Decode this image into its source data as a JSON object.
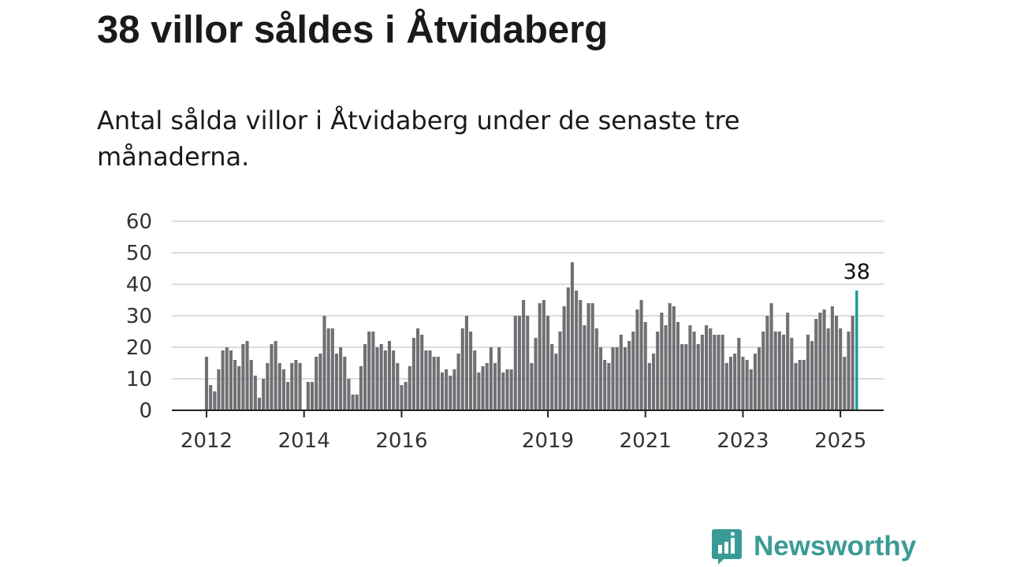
{
  "title": "38 villor såldes i Åtvidaberg",
  "subtitle": "Antal sålda villor i Åtvidaberg under de senaste tre månaderna.",
  "brand": {
    "name": "Newsworthy",
    "icon": "bar-chart-icon",
    "color": "#3a9b96"
  },
  "colors": {
    "bar": "#707074",
    "highlight": "#1a9a96",
    "grid": "#dcdcdc",
    "axis": "#222222"
  },
  "chart_data": {
    "type": "bar",
    "x_start": "2012-01",
    "x_tick_labels": [
      "2012",
      "2014",
      "2016",
      "2019",
      "2021",
      "2023",
      "2025"
    ],
    "y_ticks": [
      0,
      10,
      20,
      30,
      40,
      50,
      60
    ],
    "ylim": [
      0,
      60
    ],
    "grid": true,
    "highlight_label": "38",
    "values": [
      17,
      8,
      6,
      13,
      19,
      20,
      19,
      16,
      14,
      21,
      22,
      16,
      11,
      4,
      10,
      15,
      21,
      22,
      15,
      13,
      9,
      15,
      16,
      15,
      0,
      9,
      9,
      17,
      18,
      30,
      26,
      26,
      18,
      20,
      17,
      10,
      5,
      5,
      14,
      21,
      25,
      25,
      20,
      21,
      19,
      22,
      19,
      15,
      8,
      9,
      14,
      23,
      26,
      24,
      19,
      19,
      17,
      17,
      12,
      13,
      11,
      13,
      18,
      26,
      30,
      25,
      19,
      12,
      14,
      15,
      20,
      15,
      20,
      12,
      13,
      13,
      30,
      30,
      35,
      30,
      15,
      23,
      34,
      35,
      30,
      21,
      18,
      25,
      33,
      39,
      47,
      38,
      35,
      27,
      34,
      34,
      26,
      20,
      16,
      15,
      20,
      20,
      24,
      20,
      22,
      25,
      32,
      35,
      28,
      15,
      18,
      25,
      31,
      27,
      34,
      33,
      28,
      21,
      21,
      27,
      25,
      21,
      24,
      27,
      26,
      24,
      24,
      24,
      15,
      17,
      18,
      23,
      17,
      16,
      13,
      18,
      20,
      25,
      30,
      34,
      25,
      25,
      24,
      31,
      23,
      15,
      16,
      16,
      24,
      22,
      29,
      31,
      32,
      26,
      33,
      30,
      26,
      17,
      25,
      30,
      38
    ]
  }
}
